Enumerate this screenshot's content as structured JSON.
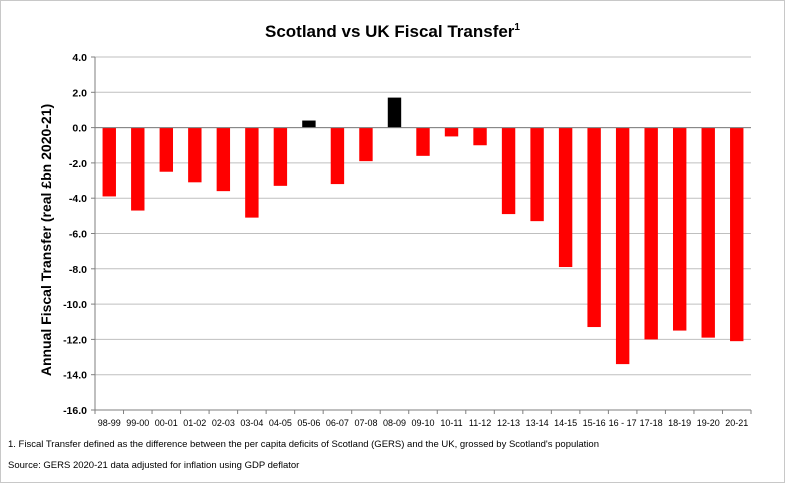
{
  "chart_data": {
    "type": "bar",
    "title": "Scotland vs UK Fiscal Transfer",
    "title_superscript": "1",
    "xlabel": "",
    "ylabel": "Annual Fiscal Transfer (real £bn 2020-21)",
    "ylim": [
      -16,
      4
    ],
    "yticks": [
      "4.0",
      "2.0",
      "0.0",
      "-2.0",
      "-4.0",
      "-6.0",
      "-8.0",
      "-10.0",
      "-12.0",
      "-14.0",
      "-16.0"
    ],
    "ytick_values": [
      4,
      2,
      0,
      -2,
      -4,
      -6,
      -8,
      -10,
      -12,
      -14,
      -16
    ],
    "grid": true,
    "categories": [
      "98-99",
      "99-00",
      "00-01",
      "01-02",
      "02-03",
      "03-04",
      "04-05",
      "05-06",
      "06-07",
      "07-08",
      "08-09",
      "09-10",
      "10-11",
      "11-12",
      "12-13",
      "13-14",
      "14-15",
      "15-16",
      "16 - 17",
      "17-18",
      "18-19",
      "19-20",
      "20-21"
    ],
    "values": [
      -3.9,
      -4.7,
      -2.5,
      -3.1,
      -3.6,
      -5.1,
      -3.3,
      0.4,
      -3.2,
      -1.9,
      1.7,
      -1.6,
      -0.5,
      -1.0,
      -4.9,
      -5.3,
      -7.9,
      -11.3,
      -13.4,
      -12.0,
      -11.5,
      -11.9,
      -12.1
    ],
    "colors": {
      "negative": "#ff0000",
      "positive": "#000000",
      "grid": "#bfbfbf",
      "axis": "#7f7f7f"
    }
  },
  "footnote": "1.  Fiscal Transfer defined as the difference between the per capita deficits of Scotland (GERS) and the UK,  grossed by Scotland's population",
  "source": "Source:  GERS 2020-21 data adjusted for inflation using GDP deflator"
}
